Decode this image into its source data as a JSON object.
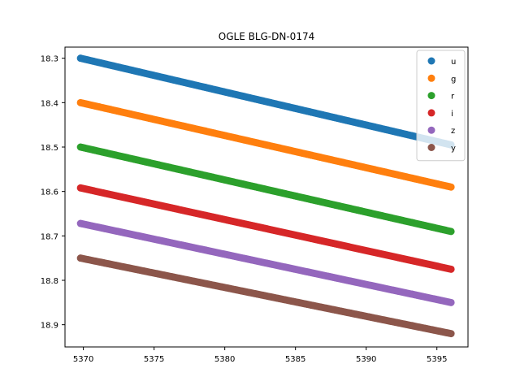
{
  "chart_data": {
    "type": "scatter",
    "title": "OGLE BLG-DN-0174",
    "xlabel": "",
    "ylabel": "",
    "xlim": [
      5368.7,
      5397.2
    ],
    "ylim": [
      18.95,
      18.275
    ],
    "y_inverted": true,
    "x_ticks": [
      5370,
      5375,
      5380,
      5385,
      5390,
      5395
    ],
    "y_ticks": [
      18.3,
      18.4,
      18.5,
      18.6,
      18.7,
      18.8,
      18.9
    ],
    "grid": false,
    "legend_position": "top-right",
    "x_range": [
      5369.8,
      5396.0
    ],
    "series": [
      {
        "name": "u",
        "color": "#1f77b4",
        "start": [
          5369.8,
          18.3
        ],
        "end": [
          5396.0,
          18.495
        ]
      },
      {
        "name": "g",
        "color": "#ff7f0e",
        "start": [
          5369.8,
          18.4
        ],
        "end": [
          5396.0,
          18.59
        ]
      },
      {
        "name": "r",
        "color": "#2ca02c",
        "start": [
          5369.8,
          18.5
        ],
        "end": [
          5396.0,
          18.69
        ]
      },
      {
        "name": "i",
        "color": "#d62728",
        "start": [
          5369.8,
          18.592
        ],
        "end": [
          5396.0,
          18.775
        ]
      },
      {
        "name": "z",
        "color": "#9467bd",
        "start": [
          5369.8,
          18.672
        ],
        "end": [
          5396.0,
          18.85
        ]
      },
      {
        "name": "y",
        "color": "#8c564b",
        "start": [
          5369.8,
          18.75
        ],
        "end": [
          5396.0,
          18.92
        ]
      }
    ]
  }
}
